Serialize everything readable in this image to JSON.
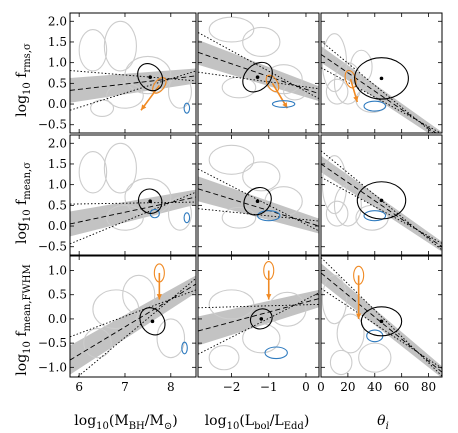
{
  "chart_data": {
    "type": "scatter",
    "description_kind": "3x3 grid of contour panels with linear fits and scatter bands",
    "colors": {
      "grey": "#cccccc",
      "orange": "#f08a24",
      "blue": "#2f7bbf",
      "black": "#000000",
      "band": "#b8b8b8"
    },
    "columns": [
      {
        "xlabel": "log10(M_BH/M_sun)",
        "xlim": [
          5.8,
          8.55
        ],
        "xticks": [
          6,
          7,
          8
        ],
        "xticklabels": [
          "6",
          "7",
          "8"
        ]
      },
      {
        "xlabel": "log10(L_bol/L_Edd)",
        "xlim": [
          -2.9,
          0.35
        ],
        "xticks": [
          -2,
          -1,
          0
        ],
        "xticklabels": [
          "−2",
          "−1",
          "0"
        ]
      },
      {
        "xlabel": "θ_i",
        "xlim": [
          0,
          90
        ],
        "xticks": [
          0,
          20,
          40,
          60,
          80
        ],
        "xticklabels": [
          "0",
          "20",
          "40",
          "60",
          "80"
        ]
      }
    ],
    "rows": [
      {
        "ylabel": "log10 f_rms,σ",
        "ylim": [
          -0.7,
          2.2
        ],
        "yticks": [
          -0.5,
          0.0,
          0.5,
          1.0,
          1.5,
          2.0
        ],
        "yticklabels": [
          "−0.5",
          "0.0",
          "0.5",
          "1.0",
          "1.5",
          "2.0"
        ]
      },
      {
        "ylabel": "log10 f_mean,σ",
        "ylim": [
          -0.7,
          2.2
        ],
        "yticks": [
          -0.5,
          0.0,
          0.5,
          1.0,
          1.5,
          2.0
        ],
        "yticklabels": [
          "−0.5",
          "0.0",
          "0.5",
          "1.0",
          "1.5",
          "2.0"
        ]
      },
      {
        "ylabel": "log10 f_mean,FWHM",
        "ylim": [
          -1.2,
          1.3
        ],
        "yticks": [
          -1.0,
          -0.5,
          0.0,
          0.5,
          1.0
        ],
        "yticklabels": [
          "−1.0",
          "−0.5",
          "0.0",
          "0.5",
          "1.0"
        ]
      }
    ],
    "panels": [
      {
        "row": 0,
        "col": 0,
        "fit": {
          "x": [
            5.8,
            8.55
          ],
          "y": [
            0.33,
            0.68
          ],
          "scatter": 0.3
        },
        "black": {
          "cx": 7.55,
          "cy": 0.65,
          "rx": 0.25,
          "ry": 0.35,
          "rot": -35
        },
        "orange_arrows": [
          [
            7.75,
            0.45,
            7.35,
            -0.15
          ]
        ],
        "blue": [
          [
            8.35,
            -0.1,
            0.06,
            0.12
          ]
        ],
        "grey": [
          [
            6.3,
            1.3,
            0.3,
            0.5
          ],
          [
            6.9,
            1.4,
            0.35,
            0.6
          ],
          [
            7.5,
            0.7,
            0.5,
            0.45
          ],
          [
            7.0,
            0.2,
            0.4,
            0.3
          ],
          [
            8.2,
            0.3,
            0.25,
            0.4
          ],
          [
            6.5,
            -0.1,
            0.25,
            0.2
          ]
        ]
      },
      {
        "row": 0,
        "col": 1,
        "fit": {
          "x": [
            -2.9,
            0.35
          ],
          "y": [
            1.25,
            0.25
          ],
          "scatter": 0.3
        },
        "black": {
          "cx": -1.3,
          "cy": 0.65,
          "rx": 0.45,
          "ry": 0.3,
          "rot": -45
        },
        "orange_arrows": [
          [
            -0.9,
            0.5,
            -0.5,
            -0.1
          ]
        ],
        "blue": [
          [
            -0.6,
            0.0,
            0.3,
            0.08
          ]
        ],
        "grey": [
          [
            -2.0,
            1.8,
            0.6,
            0.3
          ],
          [
            -1.2,
            1.5,
            0.5,
            0.35
          ],
          [
            -0.6,
            0.6,
            0.5,
            0.35
          ],
          [
            -1.8,
            0.4,
            0.45,
            0.25
          ],
          [
            -0.3,
            0.3,
            0.3,
            0.2
          ]
        ]
      },
      {
        "row": 0,
        "col": 2,
        "fit": {
          "x": [
            0,
            90
          ],
          "y": [
            1.2,
            -0.8
          ],
          "scatter": 0.2
        },
        "black": {
          "cx": 45,
          "cy": 0.62,
          "rx": 20,
          "ry": 0.5,
          "rot": 0
        },
        "orange_arrows": [
          [
            22,
            0.6,
            27,
            0.05
          ]
        ],
        "blue": [
          [
            40,
            -0.05,
            8,
            0.12
          ]
        ],
        "grey": [
          [
            10,
            1.0,
            9,
            0.7
          ],
          [
            20,
            0.5,
            10,
            0.5
          ],
          [
            38,
            0.1,
            12,
            0.3
          ],
          [
            12,
            0.3,
            8,
            0.3
          ],
          [
            30,
            0.9,
            8,
            0.4
          ]
        ]
      },
      {
        "row": 1,
        "col": 0,
        "fit": {
          "x": [
            5.8,
            8.55
          ],
          "y": [
            0.05,
            0.7
          ],
          "scatter": 0.3
        },
        "black": {
          "cx": 7.55,
          "cy": 0.6,
          "rx": 0.25,
          "ry": 0.3,
          "rot": -30
        },
        "orange_arrows": [],
        "blue": [
          [
            8.35,
            0.2,
            0.06,
            0.12
          ],
          [
            7.65,
            0.3,
            0.1,
            0.1
          ]
        ],
        "grey": [
          [
            6.3,
            1.3,
            0.3,
            0.5
          ],
          [
            6.9,
            1.4,
            0.35,
            0.6
          ],
          [
            7.5,
            0.7,
            0.5,
            0.45
          ],
          [
            7.0,
            0.2,
            0.4,
            0.3
          ],
          [
            8.2,
            0.3,
            0.25,
            0.4
          ]
        ]
      },
      {
        "row": 1,
        "col": 1,
        "fit": {
          "x": [
            -2.9,
            0.35
          ],
          "y": [
            0.9,
            0.0
          ],
          "scatter": 0.3
        },
        "black": {
          "cx": -1.3,
          "cy": 0.6,
          "rx": 0.4,
          "ry": 0.3,
          "rot": -45
        },
        "orange_arrows": [],
        "blue": [
          [
            -1.0,
            0.25,
            0.3,
            0.12
          ]
        ],
        "grey": [
          [
            -2.0,
            1.6,
            0.6,
            0.35
          ],
          [
            -1.2,
            1.2,
            0.5,
            0.35
          ],
          [
            -0.6,
            0.6,
            0.5,
            0.35
          ],
          [
            -1.8,
            0.2,
            0.45,
            0.25
          ]
        ]
      },
      {
        "row": 1,
        "col": 2,
        "fit": {
          "x": [
            0,
            90
          ],
          "y": [
            1.5,
            -0.5
          ],
          "scatter": 0.2
        },
        "black": {
          "cx": 45,
          "cy": 0.62,
          "rx": 18,
          "ry": 0.45,
          "rot": 0
        },
        "orange_arrows": [],
        "blue": [
          [
            40,
            0.25,
            8,
            0.12
          ]
        ],
        "grey": [
          [
            10,
            1.0,
            9,
            0.7
          ],
          [
            20,
            0.5,
            10,
            0.5
          ],
          [
            38,
            0.2,
            12,
            0.3
          ],
          [
            12,
            0.3,
            8,
            0.3
          ]
        ]
      },
      {
        "row": 2,
        "col": 0,
        "fit": {
          "x": [
            5.8,
            8.55
          ],
          "y": [
            -0.85,
            0.72
          ],
          "scatter": 0.3
        },
        "black": {
          "cx": 7.6,
          "cy": -0.05,
          "rx": 0.25,
          "ry": 0.3,
          "rot": -35
        },
        "orange_arrows": [
          [
            7.75,
            0.95,
            7.75,
            0.4
          ]
        ],
        "blue": [
          [
            8.3,
            -0.6,
            0.06,
            0.12
          ]
        ],
        "grey": [
          [
            6.8,
            0.2,
            0.5,
            0.4
          ],
          [
            7.3,
            0.5,
            0.35,
            0.4
          ],
          [
            8.0,
            -0.4,
            0.3,
            0.4
          ],
          [
            6.4,
            -0.5,
            0.3,
            0.3
          ]
        ]
      },
      {
        "row": 2,
        "col": 1,
        "fit": {
          "x": [
            -2.9,
            0.35
          ],
          "y": [
            -0.25,
            0.42
          ],
          "scatter": 0.3
        },
        "black": {
          "cx": -1.2,
          "cy": 0.0,
          "rx": 0.3,
          "ry": 0.2,
          "rot": -30
        },
        "orange_arrows": [
          [
            -1.0,
            1.0,
            -1.0,
            0.4
          ]
        ],
        "blue": [
          [
            -0.8,
            -0.7,
            0.3,
            0.12
          ]
        ],
        "grey": [
          [
            -2.0,
            0.3,
            0.6,
            0.3
          ],
          [
            -1.2,
            -0.4,
            0.5,
            0.3
          ],
          [
            -0.5,
            0.2,
            0.5,
            0.35
          ],
          [
            -2.2,
            -0.8,
            0.4,
            0.25
          ]
        ]
      },
      {
        "row": 2,
        "col": 2,
        "fit": {
          "x": [
            0,
            90
          ],
          "y": [
            0.95,
            -1.1
          ],
          "scatter": 0.2
        },
        "black": {
          "cx": 45,
          "cy": -0.05,
          "rx": 15,
          "ry": 0.3,
          "rot": 0
        },
        "orange_arrows": [
          [
            28,
            0.9,
            28,
            0.0
          ]
        ],
        "blue": [
          [
            40,
            -0.35,
            6,
            0.12
          ]
        ],
        "grey": [
          [
            10,
            0.4,
            9,
            0.5
          ],
          [
            22,
            -0.3,
            10,
            0.4
          ],
          [
            40,
            -0.8,
            12,
            0.3
          ],
          [
            15,
            -0.9,
            8,
            0.25
          ]
        ]
      }
    ]
  }
}
